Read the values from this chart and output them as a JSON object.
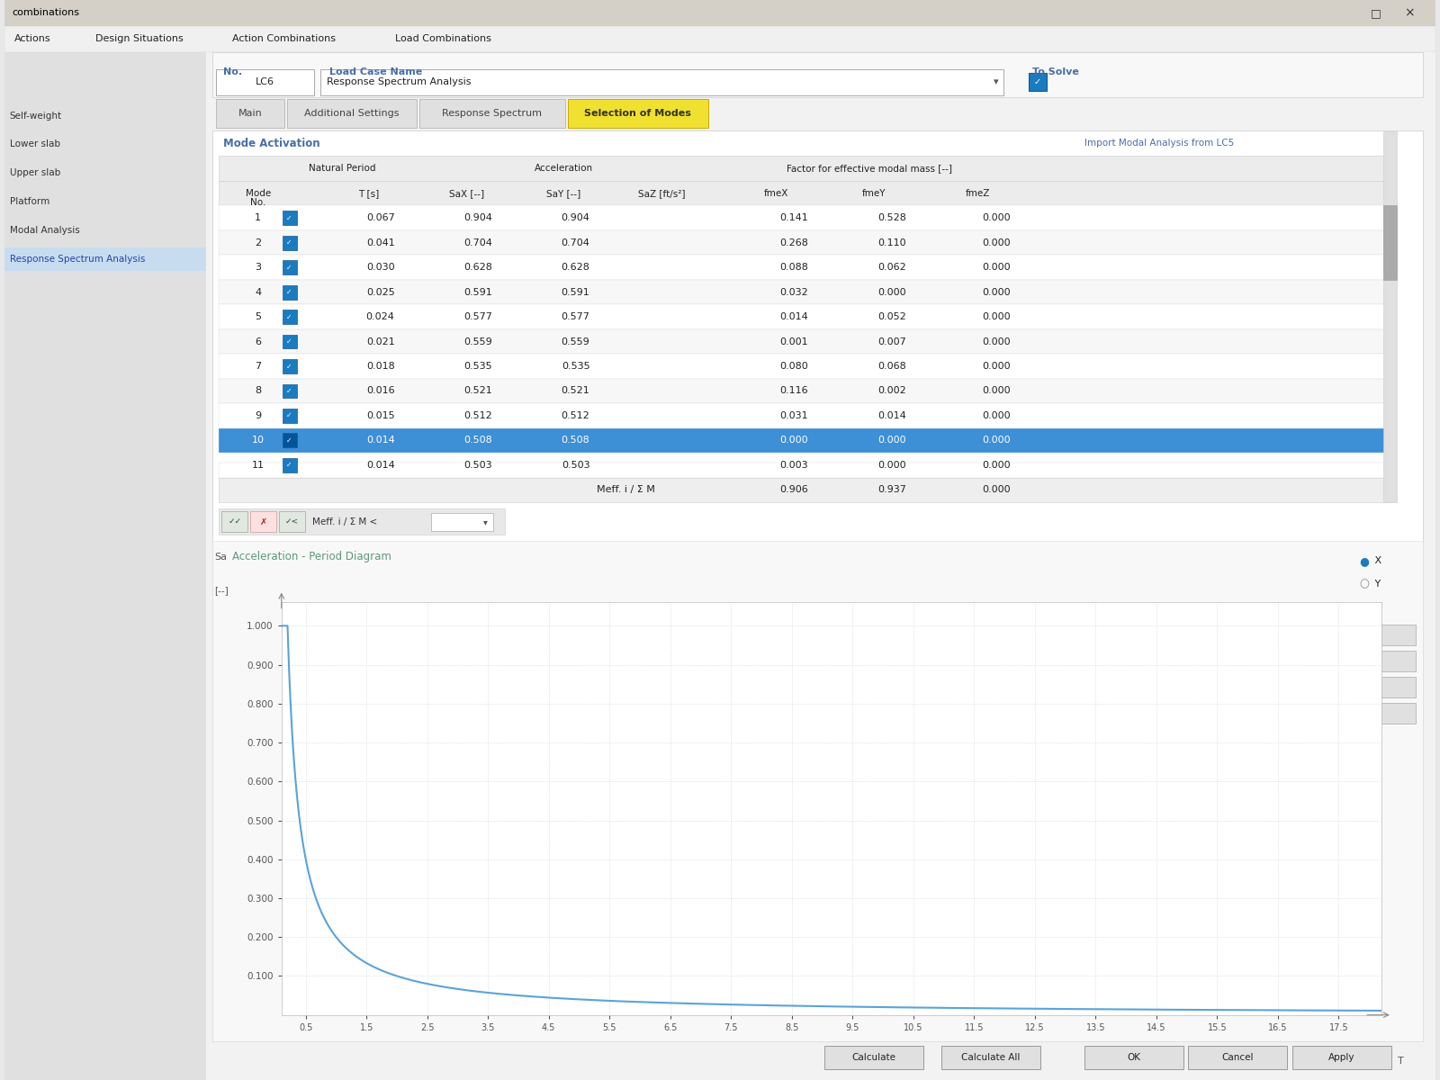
{
  "window_title": "combinations",
  "menu_items": [
    "Actions",
    "Design Situations",
    "Action Combinations",
    "Load Combinations"
  ],
  "left_panel_items": [
    "Self-weight",
    "Lower slab",
    "Upper slab",
    "Platform",
    "Modal Analysis",
    "Response Spectrum Analysis"
  ],
  "active_left_item": "Response Spectrum Analysis",
  "lc_no": "LC6",
  "lc_name": "Response Spectrum Analysis",
  "tabs": [
    "Main",
    "Additional Settings",
    "Response Spectrum",
    "Selection of Modes"
  ],
  "active_tab": "Selection of Modes",
  "section_title": "Mode Activation",
  "import_link": "Import Modal Analysis from LC5",
  "table_data": [
    [
      1,
      0.067,
      0.904,
      0.904,
      0.141,
      0.528,
      0.0
    ],
    [
      2,
      0.041,
      0.704,
      0.704,
      0.268,
      0.11,
      0.0
    ],
    [
      3,
      0.03,
      0.628,
      0.628,
      0.088,
      0.062,
      0.0
    ],
    [
      4,
      0.025,
      0.591,
      0.591,
      0.032,
      0.0,
      0.0
    ],
    [
      5,
      0.024,
      0.577,
      0.577,
      0.014,
      0.052,
      0.0
    ],
    [
      6,
      0.021,
      0.559,
      0.559,
      0.001,
      0.007,
      0.0
    ],
    [
      7,
      0.018,
      0.535,
      0.535,
      0.08,
      0.068,
      0.0
    ],
    [
      8,
      0.016,
      0.521,
      0.521,
      0.116,
      0.002,
      0.0
    ],
    [
      9,
      0.015,
      0.512,
      0.512,
      0.031,
      0.014,
      0.0
    ],
    [
      10,
      0.014,
      0.508,
      0.508,
      0.0,
      0.0,
      0.0
    ],
    [
      11,
      0.014,
      0.503,
      0.503,
      0.003,
      0.0,
      0.0
    ]
  ],
  "highlighted_row": 10,
  "chart_title": "Acceleration - Period Diagram",
  "x_ticks": [
    0.5,
    1.5,
    2.5,
    3.5,
    4.5,
    5.5,
    6.5,
    7.5,
    8.5,
    9.5,
    10.5,
    11.5,
    12.5,
    13.5,
    14.5,
    15.5,
    16.5,
    17.5
  ],
  "y_ticks": [
    0.1,
    0.2,
    0.3,
    0.4,
    0.5,
    0.6,
    0.7,
    0.8,
    0.9,
    1.0
  ],
  "bg_color": "#e8e8e8",
  "content_bg": "#f5f5f5",
  "white": "#ffffff",
  "table_header_bg": "#f0f0f0",
  "highlight_bg": "#3d8fd6",
  "tab_active_color": "#f0e030",
  "tab_inactive_color": "#e8e8e8",
  "left_active_bg": "#c8dcf0",
  "curve_color": "#5ba3d9",
  "grid_color": "#c0c8d0",
  "title_blue": "#4a6ea8",
  "dark_text": "#222222",
  "mid_text": "#555555",
  "chart_title_color": "#5a9a7a"
}
